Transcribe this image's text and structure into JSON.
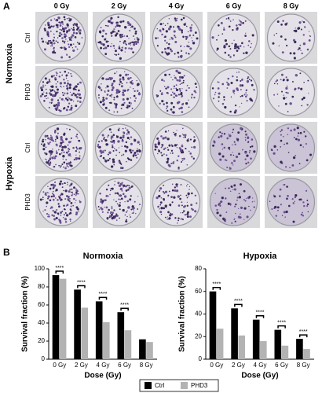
{
  "panel_a": {
    "label": "A",
    "columns": [
      "0 Gy",
      "2 Gy",
      "4 Gy",
      "6 Gy",
      "8 Gy"
    ],
    "groups": [
      {
        "name": "Normoxia",
        "rows": [
          "Ctrl",
          "PHD3"
        ]
      },
      {
        "name": "Hypoxia",
        "rows": [
          "Ctrl",
          "PHD3"
        ]
      }
    ]
  },
  "panel_b": {
    "label": "B"
  },
  "chart_data": [
    {
      "type": "bar",
      "title": "Normoxia",
      "y_label": "Survival fraction (%)",
      "x_label": "Dose (Gy)",
      "categories": [
        "0 Gy",
        "2 Gy",
        "4 Gy",
        "6 Gy",
        "8 Gy"
      ],
      "series": [
        {
          "name": "Ctrl",
          "color": "#000000",
          "values": [
            93,
            77,
            64,
            52,
            22
          ]
        },
        {
          "name": "PHD3",
          "color": "#b3b3b3",
          "values": [
            89,
            57,
            41,
            32,
            19
          ]
        }
      ],
      "significance": [
        "****",
        "****",
        "****",
        "****",
        null
      ],
      "ylim": [
        0,
        100
      ],
      "yticks": [
        0,
        20,
        40,
        60,
        80,
        100
      ]
    },
    {
      "type": "bar",
      "title": "Hypoxia",
      "y_label": "Survival fraction (%)",
      "x_label": "Dose (Gy)",
      "categories": [
        "0 Gy",
        "2 Gy",
        "4 Gy",
        "6 Gy",
        "8 Gy"
      ],
      "series": [
        {
          "color": "#000000",
          "values": [
            60,
            45,
            35,
            26,
            18
          ]
        },
        {
          "color": "#b3b3b3",
          "values": [
            27,
            21,
            16,
            12,
            9
          ]
        }
      ],
      "significance": [
        "****",
        "****",
        "****",
        "****",
        "****"
      ],
      "ylim": [
        0,
        80
      ],
      "yticks": [
        0,
        20,
        40,
        60,
        80
      ]
    }
  ]
}
